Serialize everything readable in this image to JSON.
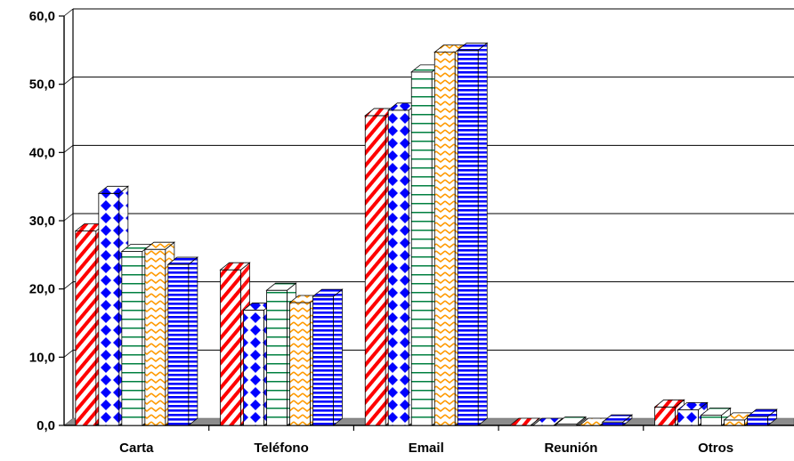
{
  "chart_data": {
    "type": "bar",
    "categories": [
      "Carta",
      "Teléfono",
      "Email",
      "Reunión",
      "Otros"
    ],
    "series": [
      {
        "pattern": "red-diagonal",
        "color": "#ff0000",
        "values": [
          28.5,
          22.8,
          45.4,
          0.0,
          2.7
        ]
      },
      {
        "pattern": "blue-diamond",
        "color": "#0000ff",
        "values": [
          34.0,
          16.9,
          46.2,
          0.0,
          2.3
        ]
      },
      {
        "pattern": "green-horizontal",
        "color": "#008040",
        "values": [
          25.5,
          19.8,
          51.8,
          0.2,
          1.5
        ]
      },
      {
        "pattern": "orange-wave",
        "color": "#ff9900",
        "values": [
          25.8,
          18.0,
          54.7,
          0.0,
          0.8
        ]
      },
      {
        "pattern": "blue-horizontal",
        "color": "#0000ff",
        "values": [
          23.6,
          18.9,
          55.0,
          0.5,
          1.3
        ]
      }
    ],
    "y_ticks": [
      "0,0",
      "10,0",
      "20,0",
      "30,0",
      "40,0",
      "50,0",
      "60,0"
    ],
    "ylim": [
      0,
      60
    ],
    "grid": true,
    "legend": "none"
  }
}
